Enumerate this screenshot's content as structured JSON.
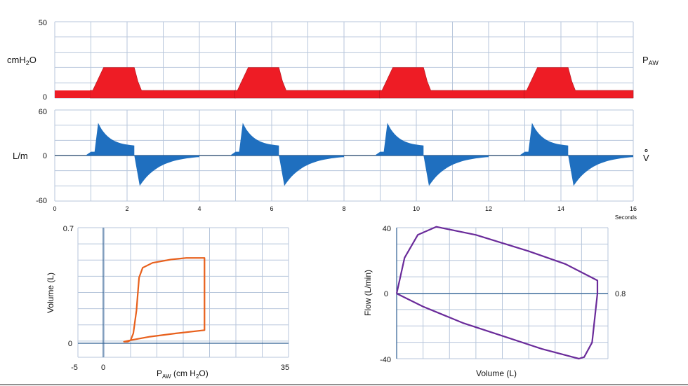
{
  "charts": {
    "pressure": {
      "type": "area",
      "ylabel": "cmH",
      "ylabel_sub": "2",
      "ylabel_tail": "O",
      "series_label": "P",
      "series_label_sub": "AW",
      "y_ticks": [
        "50",
        "0"
      ],
      "ylim": [
        0,
        50
      ],
      "xlim": [
        0,
        16
      ],
      "color": "#ee1c25",
      "baseline": 5,
      "plateau": 20,
      "breath_starts": [
        1,
        5,
        9,
        13
      ]
    },
    "flow": {
      "type": "area",
      "ylabel": "L/m",
      "series_label": "V",
      "y_ticks": [
        "60",
        "0",
        "-60"
      ],
      "ylim": [
        -60,
        60
      ],
      "xlim": [
        0,
        16
      ],
      "x_ticks": [
        "0",
        "2",
        "4",
        "6",
        "8",
        "10",
        "12",
        "14",
        "16"
      ],
      "x_unit": "Seconds",
      "color": "#1f6fbf",
      "peak_inspiratory": 43,
      "end_inspiratory": 12,
      "peak_expiratory": -40,
      "breath_starts": [
        1,
        5,
        9,
        13
      ]
    },
    "pv_loop": {
      "type": "line",
      "xlabel": "P",
      "xlabel_sub": "AW",
      "xlabel_tail": " (cm H",
      "xlabel_sub2": "2",
      "xlabel_tail2": "O)",
      "ylabel": "Volume (L)",
      "x_ticks": [
        "-5",
        "0",
        "35"
      ],
      "y_ticks": [
        "0.7",
        "0"
      ],
      "xlim": [
        -5,
        35
      ],
      "ylim": [
        0,
        0.7
      ],
      "color": "#e8601c",
      "points": [
        [
          4.8,
          0.01
        ],
        [
          5.3,
          0.02
        ],
        [
          5.8,
          0.06
        ],
        [
          6.4,
          0.2
        ],
        [
          6.9,
          0.4
        ],
        [
          7.6,
          0.46
        ],
        [
          9.5,
          0.49
        ],
        [
          13,
          0.51
        ],
        [
          16,
          0.52
        ],
        [
          19.5,
          0.52
        ],
        [
          19.5,
          0.42
        ],
        [
          19.5,
          0.2
        ],
        [
          19.5,
          0.08
        ],
        [
          14,
          0.06
        ],
        [
          9,
          0.04
        ],
        [
          5.5,
          0.02
        ],
        [
          4,
          0.01
        ],
        [
          4.8,
          0.01
        ]
      ]
    },
    "fv_loop": {
      "type": "line",
      "xlabel": "Volume (L)",
      "ylabel": "Flow (L/min)",
      "y_ticks": [
        "40",
        "0",
        "-40"
      ],
      "x_tick_right": "0.8",
      "xlim": [
        0,
        0.8
      ],
      "ylim": [
        -40,
        40
      ],
      "color": "#6a2b9a",
      "points": [
        [
          0,
          0
        ],
        [
          0.03,
          22
        ],
        [
          0.08,
          36
        ],
        [
          0.15,
          41
        ],
        [
          0.3,
          36
        ],
        [
          0.5,
          26
        ],
        [
          0.64,
          18
        ],
        [
          0.76,
          8
        ],
        [
          0.76,
          0
        ],
        [
          0.75,
          -15
        ],
        [
          0.74,
          -30
        ],
        [
          0.71,
          -39
        ],
        [
          0.69,
          -40
        ],
        [
          0.55,
          -34
        ],
        [
          0.4,
          -26
        ],
        [
          0.25,
          -18
        ],
        [
          0.1,
          -8
        ],
        [
          0,
          0
        ]
      ]
    }
  }
}
